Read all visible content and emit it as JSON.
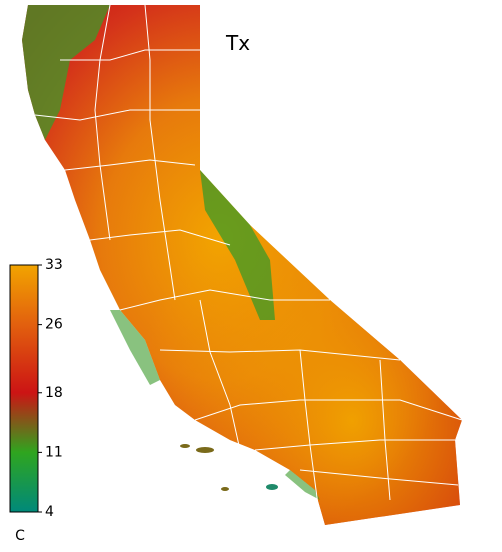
{
  "map": {
    "title": "Tx",
    "colorbar": {
      "lim": [
        4,
        33
      ],
      "ticks": [
        4,
        11,
        18,
        26,
        33
      ],
      "unit": "C",
      "colors": [
        "#00897a",
        "#2fa51f",
        "#cc1414",
        "#e2600e",
        "#f2a400"
      ]
    }
  }
}
